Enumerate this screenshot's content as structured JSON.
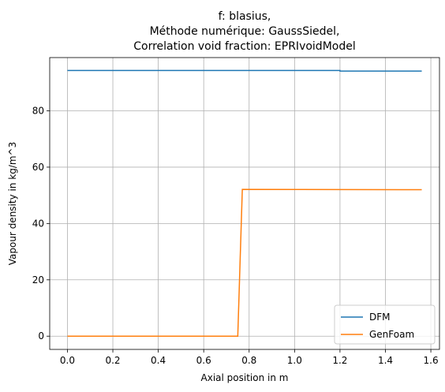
{
  "chart_data": {
    "type": "line",
    "title": [
      "f: blasius,",
      "Méthode numérique: GaussSiedel,",
      "Correlation void fraction: EPRIvoidModel"
    ],
    "xlabel": "Axial position in m",
    "ylabel": "Vapour density in kg/m^3",
    "xlim": [
      -0.078,
      1.638
    ],
    "ylim": [
      -4.7,
      98.9
    ],
    "xticks": [
      0.0,
      0.2,
      0.4,
      0.6,
      0.8,
      1.0,
      1.2,
      1.4,
      1.6
    ],
    "xtick_labels": [
      "0.0",
      "0.2",
      "0.4",
      "0.6",
      "0.8",
      "1.0",
      "1.2",
      "1.4",
      "1.6"
    ],
    "yticks": [
      0,
      20,
      40,
      60,
      80
    ],
    "ytick_labels": [
      "0",
      "20",
      "40",
      "60",
      "80"
    ],
    "grid": true,
    "legend_position": "lower right",
    "series": [
      {
        "name": "DFM",
        "color": "#1f77b4",
        "x": [
          0.0,
          1.2,
          1.2,
          1.56
        ],
        "y": [
          94.3,
          94.3,
          94.1,
          94.1
        ]
      },
      {
        "name": "GenFoam",
        "color": "#ff7f0e",
        "x": [
          0.0,
          0.75,
          0.77,
          1.56
        ],
        "y": [
          0.0,
          0.0,
          52.1,
          52.0
        ]
      }
    ]
  }
}
